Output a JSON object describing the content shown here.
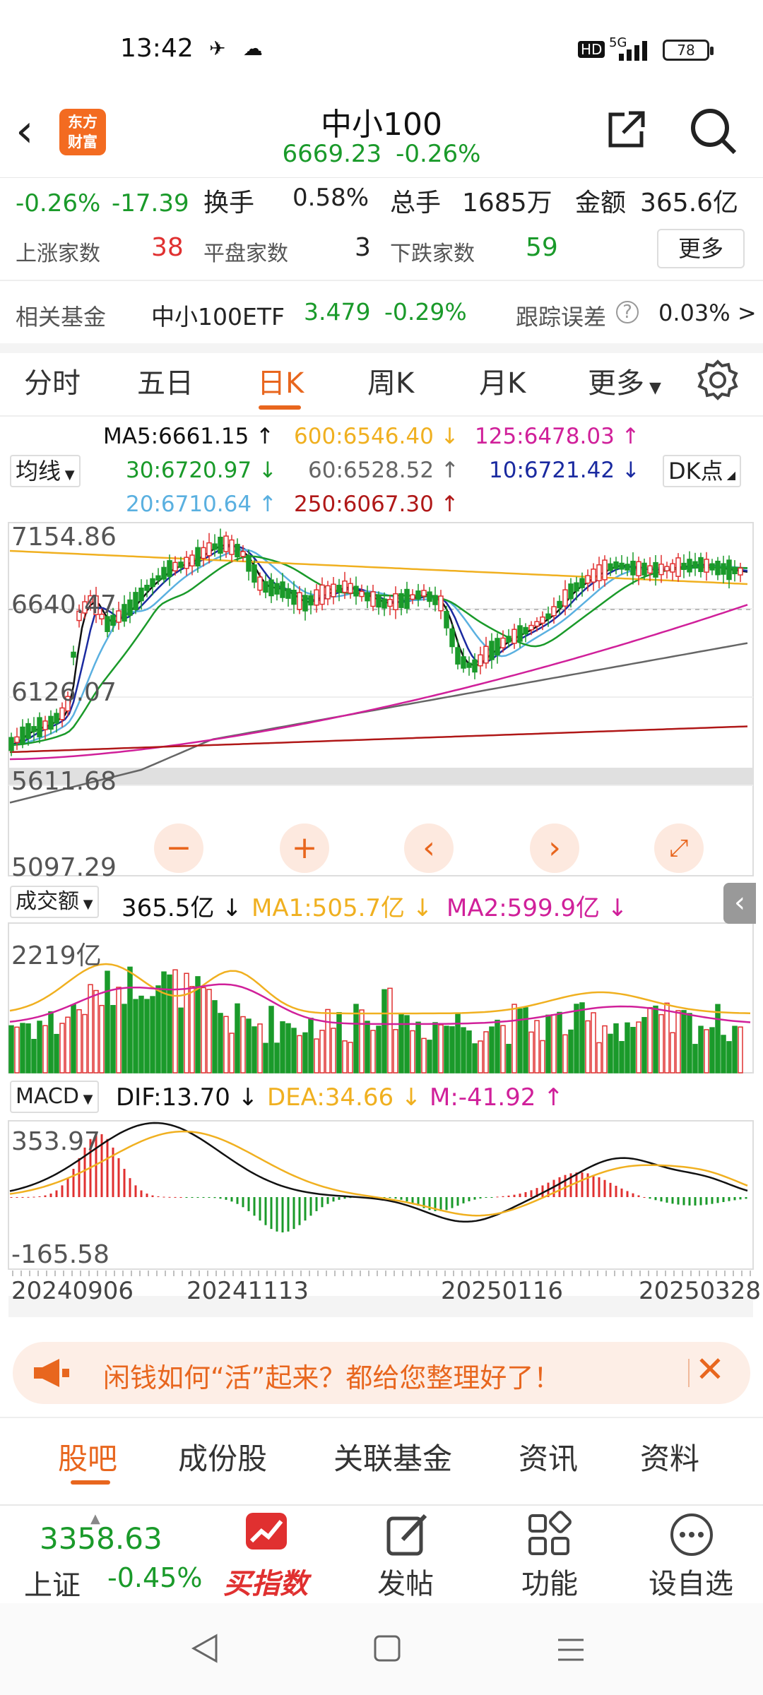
{
  "status_bar": {
    "time": "13:42",
    "battery": "78",
    "network": "5G",
    "hd": "HD"
  },
  "header": {
    "logo_line1": "东方",
    "logo_line2": "财富",
    "title": "中小100",
    "price": "6669.23",
    "change_pct": "-0.26%"
  },
  "stats": {
    "pct": "-0.26%",
    "change": "-17.39",
    "turnover_label": "换手",
    "turnover_value": "0.58%",
    "volume_label": "总手",
    "volume_value": "1685万",
    "amount_label": "金额",
    "amount_value": "365.6亿",
    "up_label": "上涨家数",
    "up_value": "38",
    "flat_label": "平盘家数",
    "flat_value": "3",
    "down_label": "下跌家数",
    "down_value": "59",
    "more_label": "更多",
    "fund_label": "相关基金",
    "fund_name": "中小100ETF",
    "fund_price": "3.479",
    "fund_pct": "-0.29%",
    "tracking_label": "跟踪误差",
    "tracking_value": "0.03% >"
  },
  "ktabs": [
    "分时",
    "五日",
    "日K",
    "周K",
    "月K",
    "更多"
  ],
  "ktab_active": 2,
  "ma": {
    "selector": "均线",
    "ma5": "MA5:6661.15 ↑",
    "ma600": "600:6546.40 ↓",
    "ma125": "125:6478.03 ↑",
    "ma30": "30:6720.97 ↓",
    "ma60": "60:6528.52 ↑",
    "ma10": "10:6721.42 ↓",
    "ma20": "20:6710.64 ↑",
    "ma250": "250:6067.30 ↑",
    "dk": "DK点"
  },
  "price_axis": [
    "7154.86",
    "6640.47",
    "6126.07",
    "5611.68",
    "5097.29"
  ],
  "volume": {
    "selector": "成交额",
    "value": "365.5亿 ↓",
    "ma1": "MA1:505.7亿 ↓",
    "ma2": "MA2:599.9亿 ↓",
    "axis_max": "2219亿"
  },
  "macd": {
    "selector": "MACD",
    "dif": "DIF:13.70 ↓",
    "dea": "DEA:34.66 ↓",
    "m": "M:-41.92 ↑",
    "axis_max": "353.97",
    "axis_min": "-165.58"
  },
  "dates": [
    "20240906",
    "20241113",
    "20250116",
    "20250328"
  ],
  "banner": {
    "text": "闲钱如何“活”起来？都给您整理好了！"
  },
  "bottom_tabs": [
    "股吧",
    "成份股",
    "关联基金",
    "资讯",
    "资料"
  ],
  "bottom_tab_active": 0,
  "bottom_bar": {
    "index_value": "3358.63",
    "index_name": "上证",
    "index_pct": "-0.45%",
    "buy_label": "买指数",
    "post_label": "发帖",
    "func_label": "功能",
    "watch_label": "设自选"
  },
  "colors": {
    "accent": "#e8661e",
    "up": "#e03030",
    "down": "#1a9a2a"
  }
}
